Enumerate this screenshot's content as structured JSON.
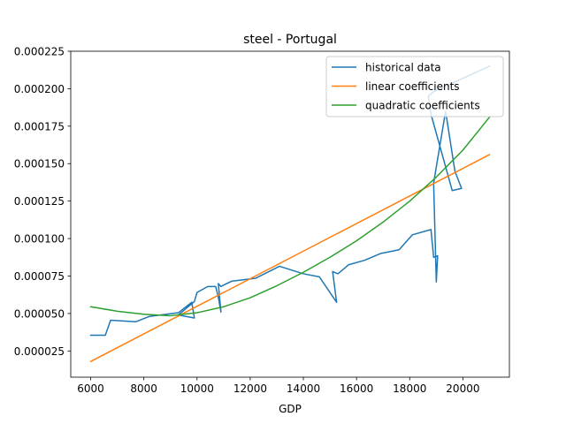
{
  "chart_data": {
    "type": "line",
    "title": "steel - Portugal",
    "xlabel": "GDP",
    "ylabel": "",
    "xlim": [
      5250,
      21750
    ],
    "ylim": [
      7.5e-06,
      0.000225
    ],
    "xticks": [
      6000,
      8000,
      10000,
      12000,
      14000,
      16000,
      18000,
      20000
    ],
    "xtick_labels": [
      "6000",
      "8000",
      "10000",
      "12000",
      "14000",
      "16000",
      "18000",
      "20000"
    ],
    "yticks": [
      2.5e-05,
      5e-05,
      7.5e-05,
      0.0001,
      0.000125,
      0.00015,
      0.000175,
      0.0002,
      0.000225
    ],
    "ytick_labels": [
      "0.000025",
      "0.000050",
      "0.000075",
      "0.000100",
      "0.000125",
      "0.000150",
      "0.000175",
      "0.000200",
      "0.000225"
    ],
    "grid": false,
    "legend_position": "top-right",
    "series": [
      {
        "name": "historical data",
        "color": "#1f77b4",
        "x": [
          6000,
          6550,
          6750,
          7700,
          8200,
          9300,
          9800,
          9900,
          9300,
          9900,
          10000,
          10400,
          10700,
          10800,
          10900,
          10800,
          10900,
          11000,
          11300,
          11500,
          12200,
          13100,
          14000,
          14600,
          15250,
          15100,
          15300,
          15700,
          16300,
          16900,
          17600,
          18100,
          18800,
          18900,
          19050,
          19000,
          18900,
          19350,
          19700,
          19950,
          19600,
          18800,
          18700,
          18900,
          21000
        ],
        "y": [
          3.55e-05,
          3.55e-05,
          4.55e-05,
          4.45e-05,
          4.8e-05,
          5.05e-05,
          5.75e-05,
          4.7e-05,
          4.9e-05,
          5.8e-05,
          6.4e-05,
          6.8e-05,
          6.8e-05,
          6.1e-05,
          5.1e-05,
          7e-05,
          6.8e-05,
          6.9e-05,
          7.15e-05,
          7.2e-05,
          7.35e-05,
          8.15e-05,
          7.65e-05,
          7.45e-05,
          5.75e-05,
          7.8e-05,
          7.65e-05,
          8.25e-05,
          8.55e-05,
          9e-05,
          9.25e-05,
          0.0001025,
          0.000106,
          8.75e-05,
          8.85e-05,
          7.1e-05,
          0.000137,
          0.000185,
          0.000145,
          0.0001335,
          0.000132,
          0.000183,
          0.000195,
          0.000198,
          0.000215
        ]
      },
      {
        "name": "linear coefficients",
        "color": "#ff7f0e",
        "x": [
          6000,
          21000
        ],
        "y": [
          1.8e-05,
          0.000156
        ]
      },
      {
        "name": "quadratic coefficients",
        "color": "#2ca02c",
        "x": [
          6000,
          7000,
          8000,
          9000,
          10000,
          11000,
          12000,
          13000,
          14000,
          15000,
          16000,
          17000,
          18000,
          19000,
          20000,
          21000
        ],
        "y": [
          5.45e-05,
          5.15e-05,
          4.95e-05,
          4.85e-05,
          5.05e-05,
          5.45e-05,
          6.05e-05,
          6.85e-05,
          7.75e-05,
          8.75e-05,
          9.85e-05,
          0.000111,
          0.000125,
          0.000141,
          0.000159,
          0.000181
        ]
      }
    ]
  }
}
